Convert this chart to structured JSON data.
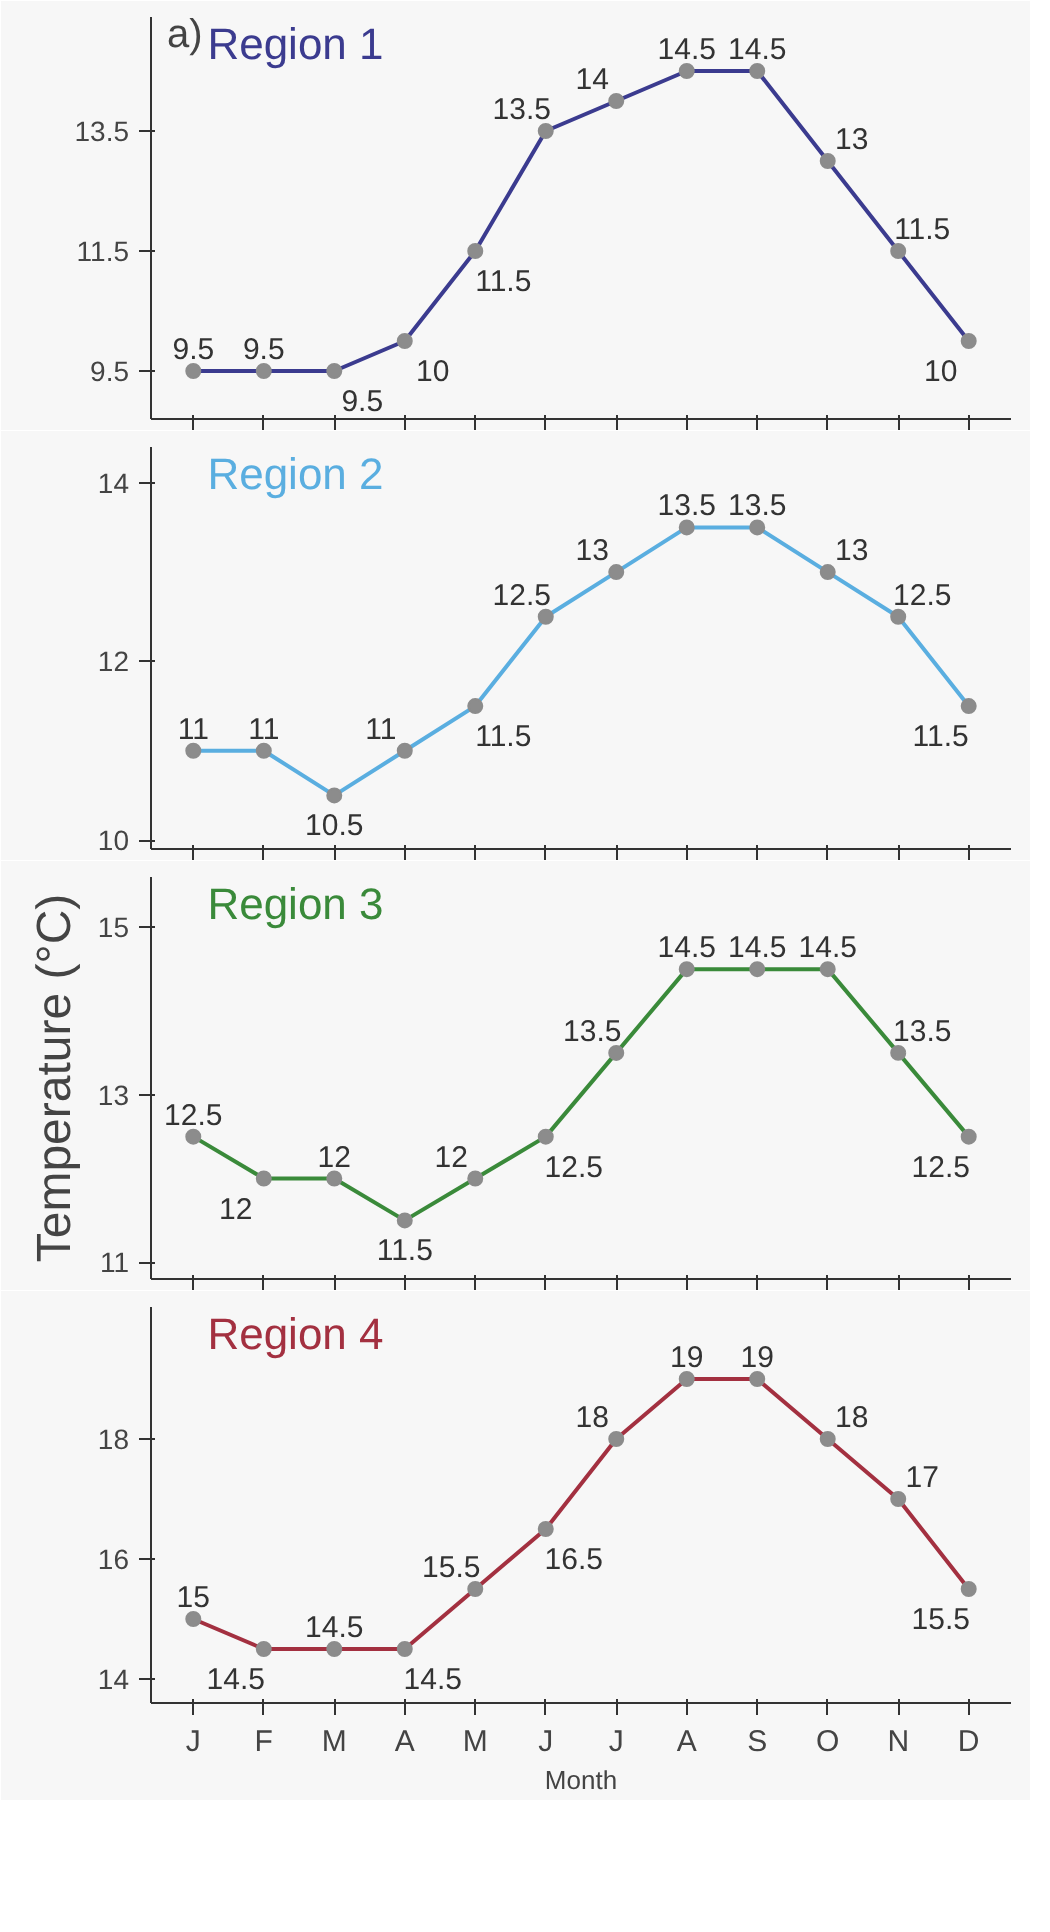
{
  "chart_data": [
    {
      "type": "line",
      "title": "Region 1",
      "categories": [
        null,
        null,
        null,
        null,
        null,
        null,
        null,
        null,
        null,
        null,
        null,
        null
      ],
      "series": [
        {
          "color": "#3b3b8f",
          "values": [
            9.5,
            9.5,
            9.5,
            10,
            11.5,
            13.5,
            14,
            14.5,
            14.5,
            13,
            11.5,
            10
          ]
        }
      ],
      "ylim": [
        8.7,
        15.4
      ],
      "yticks": [
        9.5,
        11.5,
        13.5
      ],
      "data_labels": true,
      "marker": "circle",
      "tick_labels": "y",
      "annotations": [
        "a)"
      ]
    },
    {
      "type": "line",
      "title": "Region 2",
      "categories": [
        null,
        null,
        null,
        null,
        null,
        null,
        null,
        null,
        null,
        null,
        null,
        null
      ],
      "series": [
        {
          "color": "#5aaee0",
          "values": [
            11,
            11,
            10.5,
            11,
            11.5,
            12.5,
            13,
            13.5,
            13.5,
            13,
            12.5,
            11.5
          ]
        }
      ],
      "ylim": [
        9.9,
        14.4
      ],
      "yticks": [
        10,
        12,
        14
      ],
      "data_labels": true,
      "marker": "circle",
      "tick_labels": "y"
    },
    {
      "type": "line",
      "title": "Region 3",
      "ylabel": "Temperature (°C)",
      "categories": [
        null,
        null,
        null,
        null,
        null,
        null,
        null,
        null,
        null,
        null,
        null,
        null
      ],
      "series": [
        {
          "color": "#3a8a3a",
          "values": [
            12.5,
            12,
            12,
            11.5,
            12,
            12.5,
            13.5,
            14.5,
            14.5,
            14.5,
            13.5,
            12.5
          ]
        }
      ],
      "ylim": [
        10.8,
        15.6
      ],
      "yticks": [
        11,
        13,
        15
      ],
      "data_labels": true,
      "marker": "circle",
      "tick_labels": "y"
    },
    {
      "type": "line",
      "title": "Region 4",
      "xlabel": "Month",
      "categories": [
        "J",
        "F",
        "M",
        "A",
        "M",
        "J",
        "J",
        "A",
        "S",
        "O",
        "N",
        "D"
      ],
      "series": [
        {
          "color": "#a33040",
          "values": [
            15,
            14.5,
            14.5,
            14.5,
            15.5,
            16.5,
            18,
            19,
            19,
            18,
            17,
            15.5
          ]
        }
      ],
      "ylim": [
        13.6,
        20.2
      ],
      "yticks": [
        14,
        16,
        18
      ],
      "data_labels": true,
      "marker": "circle"
    }
  ]
}
